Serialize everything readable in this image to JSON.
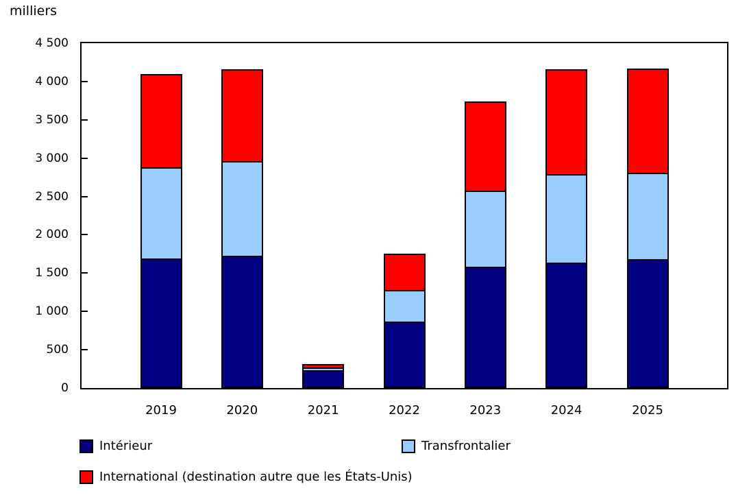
{
  "chart_data": {
    "type": "bar",
    "stacked": true,
    "ylabel": "milliers",
    "categories": [
      "2019",
      "2020",
      "2021",
      "2022",
      "2023",
      "2024",
      "2025"
    ],
    "series": [
      {
        "name": "Intérieur",
        "color": "#000080",
        "values": [
          1690,
          1730,
          235,
          870,
          1580,
          1640,
          1680
        ]
      },
      {
        "name": "Transfrontalier",
        "color": "#99CCFF",
        "values": [
          1190,
          1230,
          30,
          410,
          1000,
          1150,
          1130
        ]
      },
      {
        "name": "International (destination autre que les États-Unis)",
        "color": "#FF0000",
        "values": [
          1220,
          1200,
          50,
          470,
          1160,
          1370,
          1360
        ]
      }
    ],
    "totals": [
      4100,
      4160,
      315,
      1750,
      3740,
      4160,
      4170
    ],
    "ylim": [
      0,
      4500
    ],
    "ytick_interval": 500,
    "ytick_labels_top_to_bottom": [
      "4 500",
      "4 000",
      "3 500",
      "3 000",
      "2 500",
      "2 000",
      "1 500",
      "1 000",
      "500",
      "0"
    ],
    "grid": false,
    "legend_position": "below",
    "colors": {
      "interieur": "#000080",
      "transfrontalier": "#99CCFF",
      "international": "#FF0000",
      "axis": "#000000",
      "background": "#FFFFFF"
    }
  }
}
